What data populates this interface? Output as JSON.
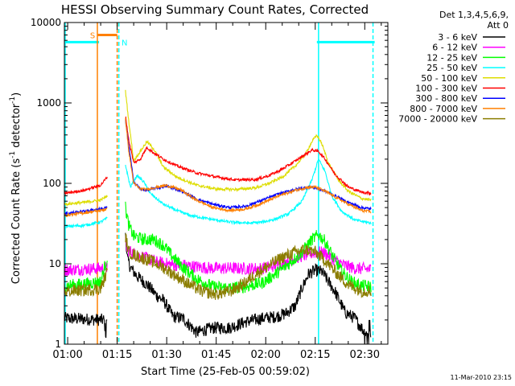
{
  "chart_data": {
    "type": "line",
    "title": "HESSI Observing Summary Count Rates, Corrected",
    "xlabel": "Start Time (25-Feb-05 00:59:02)",
    "ylabel_main": "Corrected Count Rate (s",
    "ylabel_sup": "-1",
    "ylabel_tail": " detector",
    "ylabel_sup2": "-1",
    "ylabel_close": ")",
    "y_scale": "log",
    "ylim": [
      1,
      10000
    ],
    "xlim_minutes": [
      0,
      98
    ],
    "x_ticks": [
      {
        "t": 1,
        "label": "01:00"
      },
      {
        "t": 16,
        "label": "01:15"
      },
      {
        "t": 31,
        "label": "01:30"
      },
      {
        "t": 46,
        "label": "01:45"
      },
      {
        "t": 61,
        "label": "02:00"
      },
      {
        "t": 76,
        "label": "02:15"
      },
      {
        "t": 91,
        "label": "02:30"
      }
    ],
    "y_ticks": [
      {
        "v": 1,
        "label": "1"
      },
      {
        "v": 10,
        "label": "10"
      },
      {
        "v": 100,
        "label": "100"
      },
      {
        "v": 1000,
        "label": "1000"
      },
      {
        "v": 10000,
        "label": "10000"
      }
    ],
    "legend_header": [
      "Det 1,3,4,5,6,9,",
      "Att 0"
    ],
    "legend_position": "right",
    "series": [
      {
        "name": "3 - 6 keV",
        "color": "#000000",
        "segments": [
          [
            [
              0,
              2.1
            ],
            [
              12,
              2.0
            ],
            [
              13,
              1.0
            ]
          ],
          [
            [
              18.5,
              25
            ],
            [
              19,
              12
            ],
            [
              20,
              9
            ],
            [
              22,
              7
            ],
            [
              24,
              6
            ],
            [
              26,
              5
            ],
            [
              28,
              4
            ],
            [
              30,
              3.5
            ],
            [
              33,
              2.2
            ],
            [
              36,
              2.1
            ],
            [
              40,
              1.4
            ],
            [
              45,
              1.6
            ],
            [
              50,
              1.6
            ],
            [
              55,
              1.9
            ],
            [
              60,
              2.1
            ],
            [
              64,
              2.2
            ],
            [
              67,
              2.4
            ],
            [
              70,
              3
            ],
            [
              72,
              5
            ],
            [
              74,
              7.5
            ],
            [
              76,
              8.3
            ],
            [
              78,
              8
            ],
            [
              80,
              6
            ],
            [
              82,
              4.5
            ],
            [
              85,
              2.5
            ],
            [
              88,
              2.1
            ],
            [
              91,
              1.4
            ],
            [
              93,
              1.2
            ]
          ]
        ]
      },
      {
        "name": "6 - 12 keV",
        "color": "#ff00ff",
        "segments": [
          [
            [
              0,
              8.4
            ],
            [
              6,
              8.6
            ],
            [
              12,
              8.8
            ],
            [
              13,
              9.2
            ]
          ],
          [
            [
              18.5,
              18
            ],
            [
              19,
              15
            ],
            [
              21,
              13.5
            ],
            [
              24,
              12
            ],
            [
              28,
              10.5
            ],
            [
              32,
              9.8
            ],
            [
              36,
              9.6
            ],
            [
              40,
              9.2
            ],
            [
              45,
              8.8
            ],
            [
              50,
              8.8
            ],
            [
              55,
              8.7
            ],
            [
              60,
              8.8
            ],
            [
              64,
              9.5
            ],
            [
              68,
              11
            ],
            [
              72,
              12.5
            ],
            [
              75,
              13.5
            ],
            [
              77,
              14
            ],
            [
              79,
              13.5
            ],
            [
              82,
              11
            ],
            [
              85,
              9.5
            ],
            [
              88,
              8.8
            ],
            [
              93,
              8.5
            ]
          ]
        ]
      },
      {
        "name": "12 - 25 keV",
        "color": "#00ff00",
        "segments": [
          [
            [
              0,
              5.3
            ],
            [
              6,
              5.6
            ],
            [
              11,
              6.0
            ],
            [
              13,
              12.0
            ]
          ],
          [
            [
              18.5,
              50
            ],
            [
              19.5,
              30
            ],
            [
              21,
              22
            ],
            [
              24,
              20
            ],
            [
              27,
              20
            ],
            [
              30,
              17
            ],
            [
              33,
              12
            ],
            [
              36,
              9
            ],
            [
              40,
              6.5
            ],
            [
              45,
              5.2
            ],
            [
              50,
              5.0
            ],
            [
              55,
              5.2
            ],
            [
              60,
              5.8
            ],
            [
              64,
              7.5
            ],
            [
              68,
              10
            ],
            [
              72,
              14
            ],
            [
              75,
              20
            ],
            [
              77,
              23
            ],
            [
              79,
              19
            ],
            [
              81,
              13
            ],
            [
              84,
              8
            ],
            [
              87,
              6
            ],
            [
              90,
              5.3
            ],
            [
              93,
              5.2
            ]
          ]
        ]
      },
      {
        "name": "25 - 50 keV",
        "color": "#00ffff",
        "segments": [
          [
            [
              0,
              29
            ],
            [
              6,
              30
            ],
            [
              11,
              33
            ],
            [
              13,
              37
            ]
          ],
          [
            [
              18.5,
              170
            ],
            [
              20,
              90
            ],
            [
              22,
              125
            ],
            [
              24,
              105
            ],
            [
              26,
              75
            ],
            [
              30,
              55
            ],
            [
              34,
              46
            ],
            [
              38,
              40
            ],
            [
              44,
              36
            ],
            [
              50,
              33
            ],
            [
              56,
              32
            ],
            [
              60,
              33
            ],
            [
              64,
              36
            ],
            [
              68,
              42
            ],
            [
              72,
              60
            ],
            [
              75,
              110
            ],
            [
              77,
              200
            ],
            [
              79,
              140
            ],
            [
              81,
              70
            ],
            [
              84,
              45
            ],
            [
              88,
              35
            ],
            [
              93,
              32
            ]
          ]
        ]
      },
      {
        "name": "50 - 100 keV",
        "color": "#dddd00",
        "segments": [
          [
            [
              0,
              55
            ],
            [
              6,
              58
            ],
            [
              11,
              62
            ],
            [
              13,
              70
            ]
          ],
          [
            [
              18.5,
              1400
            ],
            [
              19.5,
              600
            ],
            [
              21,
              190
            ],
            [
              23,
              250
            ],
            [
              25,
              330
            ],
            [
              27,
              270
            ],
            [
              30,
              160
            ],
            [
              34,
              120
            ],
            [
              40,
              95
            ],
            [
              46,
              85
            ],
            [
              52,
              84
            ],
            [
              58,
              88
            ],
            [
              62,
              100
            ],
            [
              66,
              120
            ],
            [
              70,
              165
            ],
            [
              73,
              230
            ],
            [
              75,
              330
            ],
            [
              76.5,
              400
            ],
            [
              78,
              310
            ],
            [
              80,
              180
            ],
            [
              83,
              110
            ],
            [
              86,
              80
            ],
            [
              90,
              65
            ],
            [
              93,
              62
            ]
          ]
        ]
      },
      {
        "name": "100 - 300 keV",
        "color": "#ff0000",
        "segments": [
          [
            [
              0,
              75
            ],
            [
              6,
              82
            ],
            [
              11,
              95
            ],
            [
              13,
              120
            ]
          ],
          [
            [
              18.5,
              700
            ],
            [
              19.5,
              350
            ],
            [
              21,
              180
            ],
            [
              23,
              200
            ],
            [
              25,
              280
            ],
            [
              27,
              240
            ],
            [
              30,
              200
            ],
            [
              34,
              165
            ],
            [
              40,
              135
            ],
            [
              46,
              120
            ],
            [
              52,
              110
            ],
            [
              58,
              112
            ],
            [
              62,
              125
            ],
            [
              66,
              150
            ],
            [
              70,
              190
            ],
            [
              73,
              230
            ],
            [
              75,
              260
            ],
            [
              77,
              250
            ],
            [
              79,
              200
            ],
            [
              82,
              130
            ],
            [
              86,
              90
            ],
            [
              90,
              78
            ],
            [
              93,
              75
            ]
          ]
        ]
      },
      {
        "name": "300 - 800 keV",
        "color": "#0000ff",
        "segments": [
          [
            [
              0,
              42
            ],
            [
              6,
              45
            ],
            [
              11,
              48
            ],
            [
              13,
              50
            ]
          ],
          [
            [
              18.5,
              600
            ],
            [
              19.5,
              300
            ],
            [
              21,
              105
            ],
            [
              23,
              85
            ],
            [
              25,
              82
            ],
            [
              28,
              88
            ],
            [
              31,
              92
            ],
            [
              35,
              82
            ],
            [
              40,
              64
            ],
            [
              45,
              55
            ],
            [
              50,
              50
            ],
            [
              55,
              52
            ],
            [
              60,
              62
            ],
            [
              65,
              74
            ],
            [
              70,
              84
            ],
            [
              74,
              90
            ],
            [
              76,
              88
            ],
            [
              79,
              80
            ],
            [
              82,
              70
            ],
            [
              86,
              58
            ],
            [
              90,
              50
            ],
            [
              93,
              48
            ]
          ]
        ]
      },
      {
        "name": "800 - 7000 keV",
        "color": "#ff8000",
        "segments": [
          [
            [
              0,
              40
            ],
            [
              6,
              43
            ],
            [
              11,
              46
            ],
            [
              13,
              48
            ]
          ],
          [
            [
              18.5,
              650
            ],
            [
              19.5,
              250
            ],
            [
              21,
              100
            ],
            [
              23,
              85
            ],
            [
              25,
              84
            ],
            [
              28,
              90
            ],
            [
              31,
              94
            ],
            [
              35,
              84
            ],
            [
              40,
              62
            ],
            [
              45,
              50
            ],
            [
              50,
              46
            ],
            [
              55,
              48
            ],
            [
              60,
              57
            ],
            [
              65,
              70
            ],
            [
              70,
              82
            ],
            [
              74,
              90
            ],
            [
              76,
              90
            ],
            [
              79,
              80
            ],
            [
              82,
              68
            ],
            [
              86,
              55
            ],
            [
              90,
              46
            ],
            [
              93,
              44
            ]
          ]
        ]
      },
      {
        "name": "7000 - 20000 keV",
        "color": "#8b7d00",
        "segments": [
          [
            [
              0,
              4.5
            ],
            [
              6,
              4.7
            ],
            [
              11,
              4.9
            ],
            [
              13,
              8
            ]
          ],
          [
            [
              18.5,
              22
            ],
            [
              19.5,
              14
            ],
            [
              21,
              13
            ],
            [
              23,
              12
            ],
            [
              26,
              11
            ],
            [
              30,
              9
            ],
            [
              34,
              7
            ],
            [
              38,
              5.5
            ],
            [
              42,
              4.5
            ],
            [
              46,
              4.2
            ],
            [
              50,
              4.5
            ],
            [
              54,
              5.5
            ],
            [
              58,
              7.5
            ],
            [
              62,
              9.5
            ],
            [
              66,
              12
            ],
            [
              70,
              14
            ],
            [
              73,
              15
            ],
            [
              76,
              14
            ],
            [
              79,
              11
            ],
            [
              82,
              8
            ],
            [
              86,
              5.5
            ],
            [
              90,
              4.6
            ],
            [
              93,
              4.6
            ]
          ]
        ]
      }
    ],
    "annotations": {
      "saa_label": "S",
      "night_label": "N",
      "saa_bar": {
        "t0": 10,
        "t1": 16,
        "v": 7000
      },
      "left_flag_bar": {
        "t0": 0,
        "t1": 10.5,
        "v": 5700
      },
      "right_flag_bar": {
        "t0": 76.5,
        "t1": 94,
        "v": 5700
      },
      "orange_vlines": [
        10,
        16
      ],
      "cyan_vlines": [
        16.5,
        77,
        93.5
      ]
    },
    "timestamp": "11-Mar-2010 23:15"
  }
}
